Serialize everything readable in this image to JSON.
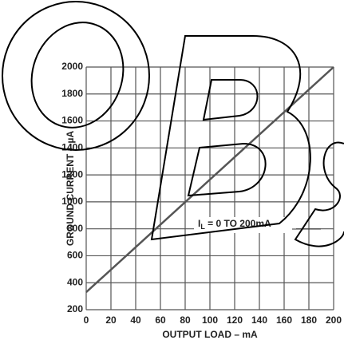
{
  "chart_data": {
    "type": "line",
    "xlabel": "OUTPUT LOAD – mA",
    "ylabel": "GROUND CURRENT – µA",
    "annotation": [
      "I",
      "L",
      " = 0 TO 200mA"
    ],
    "x": [
      0,
      200
    ],
    "series": [
      {
        "color": "#555555",
        "values": [
          330,
          2000
        ]
      }
    ],
    "xlim": [
      0,
      200
    ],
    "xticks": [
      0,
      20,
      40,
      60,
      80,
      100,
      120,
      140,
      160,
      180,
      200
    ],
    "ylim": [
      200,
      2000
    ],
    "yticks": [
      200,
      400,
      600,
      800,
      1000,
      1200,
      1400,
      1600,
      1800,
      2000
    ],
    "grid": true
  }
}
